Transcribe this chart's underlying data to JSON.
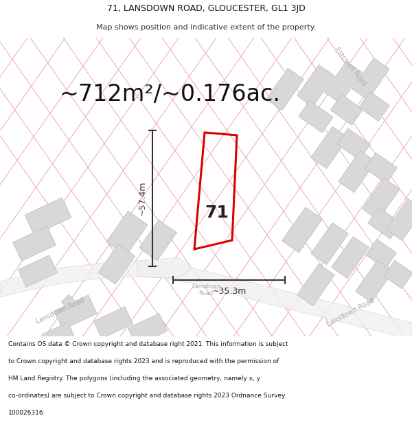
{
  "title_line1": "71, LANSDOWN ROAD, GLOUCESTER, GL1 3JD",
  "title_line2": "Map shows position and indicative extent of the property.",
  "area_text": "~712m²/~0.176ac.",
  "label_71": "71",
  "dim_vertical": "~57.4m",
  "dim_horizontal": "~35.3m",
  "footer_lines": [
    "Contains OS data © Crown copyright and database right 2021. This information is subject",
    "to Crown copyright and database rights 2023 and is reproduced with the permission of",
    "HM Land Registry. The polygons (including the associated geometry, namely x, y",
    "co-ordinates) are subject to Crown copyright and database rights 2023 Ordnance Survey",
    "100026316."
  ],
  "map_bg": "#ffffff",
  "parcel_line_color": "#f0a8a8",
  "building_fill": "#d8d8d8",
  "building_edge": "#c0c0c0",
  "road_fill": "#e8e8e8",
  "road_edge": "#c8c8c8",
  "property_color": "#dd0000",
  "dim_color": "#333333",
  "road_label_color": "#aaaaaa",
  "title_fontsize": 9,
  "subtitle_fontsize": 8,
  "area_fontsize": 24,
  "label_fontsize": 18,
  "dim_fontsize": 9,
  "footer_fontsize": 6.5,
  "road_label_fontsize": 7
}
